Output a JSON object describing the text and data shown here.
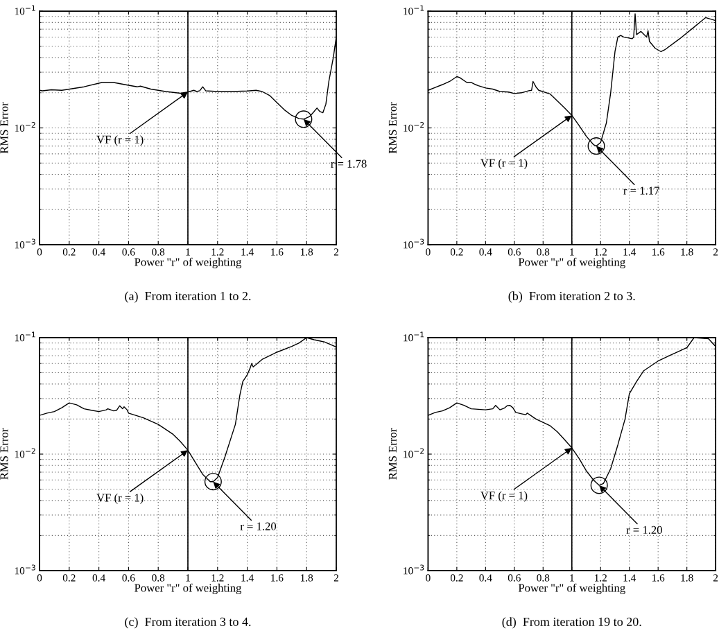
{
  "chart_data": [
    {
      "type": "line",
      "xlabel": "Power \"r\" of weighting",
      "ylabel": "RMS Error",
      "log": "y",
      "grid": true,
      "xlim": [
        0,
        2
      ],
      "ylim": [
        0.001,
        0.1
      ],
      "xticks": [
        0,
        0.2,
        0.4,
        0.6,
        0.8,
        1,
        1.2,
        1.4,
        1.6,
        1.8,
        2
      ],
      "yticks": [
        {
          "value": 0.001,
          "label": "10$^{−3}$"
        },
        {
          "value": 0.01,
          "label": "10$^{−2}$"
        },
        {
          "value": 0.1,
          "label": "10$^{−1}$"
        }
      ],
      "series": [
        {
          "color": "#000000",
          "x": [
            0,
            0.02,
            0.08,
            0.15,
            0.3,
            0.42,
            0.5,
            0.6,
            0.66,
            0.68,
            0.75,
            0.85,
            0.95,
            1.0,
            1.04,
            1.06,
            1.08,
            1.1,
            1.12,
            1.2,
            1.3,
            1.4,
            1.46,
            1.5,
            1.55,
            1.6,
            1.65,
            1.7,
            1.75,
            1.78,
            1.82,
            1.85,
            1.87,
            1.89,
            1.91,
            1.93,
            1.95,
            1.98,
            2.0
          ],
          "values": [
            0.021,
            0.0208,
            0.0212,
            0.021,
            0.0225,
            0.0245,
            0.0245,
            0.0232,
            0.0225,
            0.0228,
            0.0215,
            0.0205,
            0.0198,
            0.0203,
            0.021,
            0.0205,
            0.0208,
            0.0225,
            0.0208,
            0.0205,
            0.0205,
            0.0207,
            0.021,
            0.0205,
            0.019,
            0.0165,
            0.0143,
            0.0128,
            0.012,
            0.0119,
            0.0125,
            0.0138,
            0.0148,
            0.0138,
            0.0135,
            0.016,
            0.025,
            0.04,
            0.06
          ]
        }
      ],
      "ref_lines": [
        {
          "axis": "x",
          "value": 1,
          "color": "#000000"
        }
      ],
      "annotations": [
        {
          "text": "VF (r = 1)",
          "x": 1,
          "y": 0.0203
        },
        {
          "text": "r = 1.78",
          "x": 1.78,
          "y": 0.0119
        },
        "(a)  From iteration 1 to 2."
      ]
    },
    {
      "type": "line",
      "xlabel": "Power \"r\" of weighting",
      "ylabel": "RMS Error",
      "log": "y",
      "grid": true,
      "xlim": [
        0,
        2
      ],
      "ylim": [
        0.001,
        0.1
      ],
      "xticks": [
        0,
        0.2,
        0.4,
        0.6,
        0.8,
        1,
        1.2,
        1.4,
        1.6,
        1.8,
        2
      ],
      "yticks": [
        {
          "value": 0.001,
          "label": "10$^{−3}$"
        },
        {
          "value": 0.01,
          "label": "10$^{−2}$"
        },
        {
          "value": 0.1,
          "label": "10$^{−1}$"
        }
      ],
      "series": [
        {
          "color": "#000000",
          "x": [
            0,
            0.05,
            0.1,
            0.15,
            0.2,
            0.22,
            0.27,
            0.3,
            0.33,
            0.35,
            0.4,
            0.45,
            0.5,
            0.56,
            0.6,
            0.65,
            0.7,
            0.72,
            0.73,
            0.75,
            0.77,
            0.85,
            0.9,
            0.95,
            1.0,
            1.05,
            1.1,
            1.15,
            1.17,
            1.2,
            1.24,
            1.27,
            1.3,
            1.32,
            1.34,
            1.36,
            1.42,
            1.43,
            1.44,
            1.45,
            1.48,
            1.52,
            1.53,
            1.54,
            1.58,
            1.62,
            1.65,
            1.75,
            1.85,
            1.93,
            2.0
          ],
          "values": [
            0.021,
            0.0222,
            0.0235,
            0.025,
            0.0275,
            0.027,
            0.0245,
            0.0245,
            0.0235,
            0.023,
            0.022,
            0.0215,
            0.0205,
            0.0203,
            0.0197,
            0.02,
            0.0208,
            0.021,
            0.025,
            0.0225,
            0.021,
            0.0195,
            0.017,
            0.0148,
            0.0128,
            0.0105,
            0.0085,
            0.0072,
            0.007,
            0.0075,
            0.011,
            0.02,
            0.045,
            0.06,
            0.062,
            0.06,
            0.058,
            0.06,
            0.095,
            0.063,
            0.067,
            0.06,
            0.068,
            0.055,
            0.048,
            0.045,
            0.047,
            0.058,
            0.073,
            0.088,
            0.083
          ]
        }
      ],
      "ref_lines": [
        {
          "axis": "x",
          "value": 1,
          "color": "#000000"
        }
      ],
      "annotations": [
        {
          "text": "VF (r = 1)",
          "x": 1,
          "y": 0.0128
        },
        {
          "text": "r = 1.17",
          "x": 1.17,
          "y": 0.007
        },
        "(b)  From iteration 2 to 3."
      ]
    },
    {
      "type": "line",
      "xlabel": "Power \"r\" of weighting",
      "ylabel": "RMS Error",
      "log": "y",
      "grid": true,
      "xlim": [
        0,
        2
      ],
      "ylim": [
        0.001,
        0.1
      ],
      "xticks": [
        0,
        0.2,
        0.4,
        0.6,
        0.8,
        1,
        1.2,
        1.4,
        1.6,
        1.8,
        2
      ],
      "yticks": [
        {
          "value": 0.001,
          "label": "10$^{−3}$"
        },
        {
          "value": 0.01,
          "label": "10$^{−2}$"
        },
        {
          "value": 0.1,
          "label": "10$^{−1}$"
        }
      ],
      "series": [
        {
          "color": "#000000",
          "x": [
            0,
            0.05,
            0.1,
            0.15,
            0.2,
            0.25,
            0.3,
            0.35,
            0.4,
            0.45,
            0.46,
            0.5,
            0.52,
            0.54,
            0.56,
            0.57,
            0.59,
            0.6,
            0.7,
            0.8,
            0.9,
            0.95,
            1.0,
            1.05,
            1.1,
            1.15,
            1.17,
            1.2,
            1.25,
            1.3,
            1.32,
            1.35,
            1.37,
            1.4,
            1.42,
            1.43,
            1.44,
            1.5,
            1.6,
            1.7,
            1.75,
            1.8,
            1.85,
            1.9,
            1.92,
            2.0
          ],
          "values": [
            0.0215,
            0.0225,
            0.0232,
            0.025,
            0.0275,
            0.0265,
            0.0245,
            0.0238,
            0.0232,
            0.024,
            0.0245,
            0.0235,
            0.0238,
            0.026,
            0.0245,
            0.0255,
            0.024,
            0.0225,
            0.0205,
            0.018,
            0.0148,
            0.0128,
            0.0108,
            0.0085,
            0.0067,
            0.0058,
            0.0058,
            0.0063,
            0.0095,
            0.015,
            0.018,
            0.032,
            0.042,
            0.048,
            0.055,
            0.06,
            0.056,
            0.065,
            0.075,
            0.084,
            0.09,
            0.1,
            0.096,
            0.093,
            0.092,
            0.083
          ]
        }
      ],
      "ref_lines": [
        {
          "axis": "x",
          "value": 1,
          "color": "#000000"
        }
      ],
      "annotations": [
        {
          "text": "VF (r = 1)",
          "x": 1,
          "y": 0.0108
        },
        {
          "text": "r = 1.20",
          "x": 1.17,
          "y": 0.0058
        },
        "(c)  From iteration 3 to 4."
      ]
    },
    {
      "type": "line",
      "xlabel": "Power \"r\" of weighting",
      "ylabel": "RMS Error",
      "log": "y",
      "grid": true,
      "xlim": [
        0,
        2
      ],
      "ylim": [
        0.001,
        0.1
      ],
      "xticks": [
        0,
        0.2,
        0.4,
        0.6,
        0.8,
        1,
        1.2,
        1.4,
        1.6,
        1.8,
        2
      ],
      "yticks": [
        {
          "value": 0.001,
          "label": "10$^{−3}$"
        },
        {
          "value": 0.01,
          "label": "10$^{−2}$"
        },
        {
          "value": 0.1,
          "label": "10$^{−1}$"
        }
      ],
      "series": [
        {
          "color": "#000000",
          "x": [
            0,
            0.05,
            0.1,
            0.15,
            0.2,
            0.25,
            0.3,
            0.4,
            0.45,
            0.47,
            0.5,
            0.53,
            0.55,
            0.57,
            0.59,
            0.61,
            0.65,
            0.68,
            0.69,
            0.75,
            0.85,
            0.9,
            0.95,
            1.0,
            1.05,
            1.1,
            1.15,
            1.19,
            1.22,
            1.27,
            1.32,
            1.37,
            1.4,
            1.45,
            1.5,
            1.6,
            1.7,
            1.8,
            1.85,
            1.95,
            2.0
          ],
          "values": [
            0.0215,
            0.0228,
            0.0235,
            0.025,
            0.0275,
            0.0262,
            0.0245,
            0.024,
            0.0245,
            0.0262,
            0.024,
            0.0248,
            0.026,
            0.0262,
            0.025,
            0.0228,
            0.0222,
            0.0218,
            0.0225,
            0.02,
            0.0175,
            0.0155,
            0.0133,
            0.0113,
            0.0092,
            0.0072,
            0.006,
            0.0054,
            0.0056,
            0.0075,
            0.012,
            0.02,
            0.033,
            0.042,
            0.052,
            0.063,
            0.072,
            0.082,
            0.1,
            0.098,
            0.084
          ]
        }
      ],
      "ref_lines": [
        {
          "axis": "x",
          "value": 1,
          "color": "#000000"
        }
      ],
      "annotations": [
        {
          "text": "VF (r = 1)",
          "x": 1,
          "y": 0.0113
        },
        {
          "text": "r = 1.20",
          "x": 1.19,
          "y": 0.0054
        },
        "(d)  From iteration 19 to 20."
      ]
    }
  ]
}
